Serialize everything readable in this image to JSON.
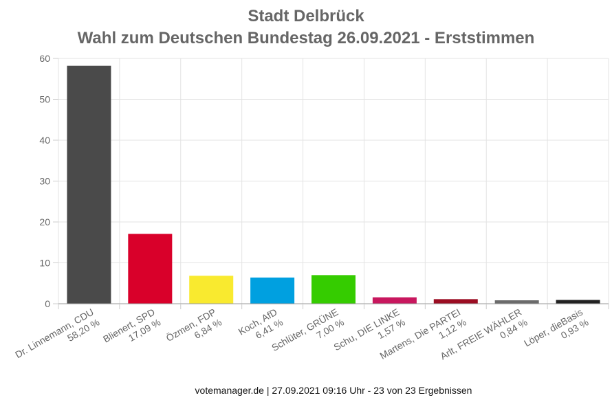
{
  "chart_data": {
    "type": "bar",
    "title": "Stadt Delbrück",
    "subtitle": "Wahl zum Deutschen Bundestag 26.09.2021  - Erststimmen",
    "xlabel": "",
    "ylabel": "",
    "ylim": [
      0,
      60
    ],
    "yticks": [
      "0",
      "10",
      "20",
      "30",
      "40",
      "50",
      "60"
    ],
    "grid": true,
    "categories": [
      "Dr. Linnemann, CDU",
      "Blienert, SPD",
      "Özmen, FDP",
      "Koch, AfD",
      "Schlüter, GRÜNE",
      "Schu, DIE LINKE",
      "Martens, Die PARTEI",
      "Arlt, FREIE WÄHLER",
      "Löper, dieBasis"
    ],
    "value_labels": [
      "58,20 %",
      "17,09 %",
      "6,84 %",
      "6,41 %",
      "7,00 %",
      "1,57 %",
      "1,12 %",
      "0,84 %",
      "0,93 %"
    ],
    "values": [
      58.2,
      17.09,
      6.84,
      6.41,
      7.0,
      1.57,
      1.12,
      0.84,
      0.93
    ],
    "colors": [
      "#4a4a4a",
      "#d9002a",
      "#f9ea2f",
      "#00a0e0",
      "#35cc00",
      "#c8175e",
      "#9b0d22",
      "#6b6b6b",
      "#222222"
    ]
  },
  "footer": "votemanager.de | 27.09.2021 09:16 Uhr - 23 von 23 Ergebnissen"
}
